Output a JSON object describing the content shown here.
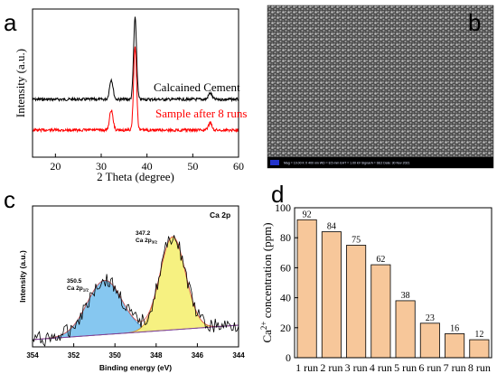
{
  "panels": {
    "a": {
      "letter": "a",
      "chart_data": {
        "type": "line",
        "xlabel": "2 Theta (degree)",
        "ylabel": "Intensity (a.u.)",
        "xlim": [
          15,
          60
        ],
        "xticks": [
          "20",
          "30",
          "40",
          "50",
          "60"
        ],
        "peaks": [
          32.2,
          37.4,
          53.8
        ],
        "series": [
          {
            "name": "Calcained Cement",
            "color": "#000000"
          },
          {
            "name": "Sample after 8 runs",
            "color": "#ff0000"
          }
        ]
      }
    },
    "b": {
      "letter": "b",
      "sem_info": "Mag = 10.00 K X   400 nm   WD = 8.5 mm   EHT = 1.00 kV   Signal A = SE2   Date: 30 Nov 2021"
    },
    "c": {
      "letter": "c",
      "chart_data": {
        "type": "area",
        "title": "Ca 2p",
        "xlabel": "Binding energy (eV)",
        "ylabel": "Intensity (a.u.)",
        "xlim": [
          354,
          344
        ],
        "xticks": [
          "354",
          "352",
          "350",
          "348",
          "346",
          "344"
        ],
        "peaks": [
          {
            "position": 350.5,
            "label_value": "350.5",
            "label_name": "Ca 2p",
            "label_sub": "1/2",
            "color": "#7fc4ef"
          },
          {
            "position": 347.2,
            "label_value": "347.2",
            "label_name": "Ca 2p",
            "label_sub": "3/2",
            "color": "#f6f07a"
          }
        ]
      }
    },
    "d": {
      "letter": "d",
      "chart_data": {
        "type": "bar",
        "categories": [
          "1 run",
          "2 run",
          "3 run",
          "4 run",
          "5 run",
          "6 run",
          "7 run",
          "8 run"
        ],
        "values": [
          92,
          84,
          75,
          62,
          38,
          23,
          16,
          12
        ],
        "ylabel_prefix": "Ca",
        "ylabel_sup": "2+",
        "ylabel_suffix": " concentration (ppm)",
        "ylim": [
          0,
          100
        ],
        "yticks": [
          "0",
          "20",
          "40",
          "60",
          "80",
          "100"
        ],
        "bar_color": "#f7c79a"
      }
    }
  }
}
